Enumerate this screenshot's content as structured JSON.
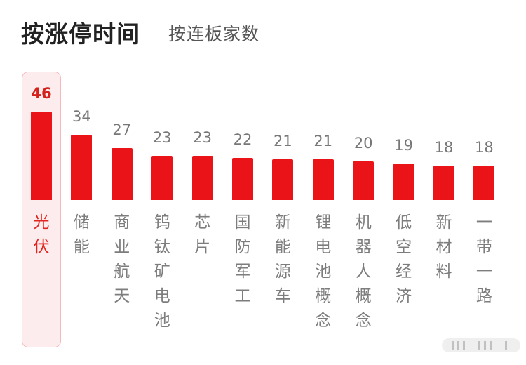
{
  "tabs": {
    "active_label": "按涨停时间",
    "inactive_label": "按连板家数"
  },
  "colors": {
    "bar": "#ea1418",
    "highlight_background": "#fdeced",
    "highlight_border": "#f5b8bc",
    "active_text": "#d4211c",
    "inactive_text": "#7d7d7d"
  },
  "chart_data": {
    "type": "bar",
    "categories": [
      "光伏",
      "储能",
      "商业航天",
      "钨钛矿电池",
      "芯片",
      "国防军工",
      "新能源车",
      "锂电池概念",
      "机器人概念",
      "低空经济",
      "新材料",
      "一带一路"
    ],
    "values": [
      46,
      34,
      27,
      23,
      23,
      22,
      21,
      21,
      20,
      19,
      18,
      18
    ],
    "highlighted_category": "光伏",
    "data_labels": true,
    "grid": false,
    "legend": "none",
    "title": "",
    "xlabel": "",
    "ylabel": ""
  }
}
